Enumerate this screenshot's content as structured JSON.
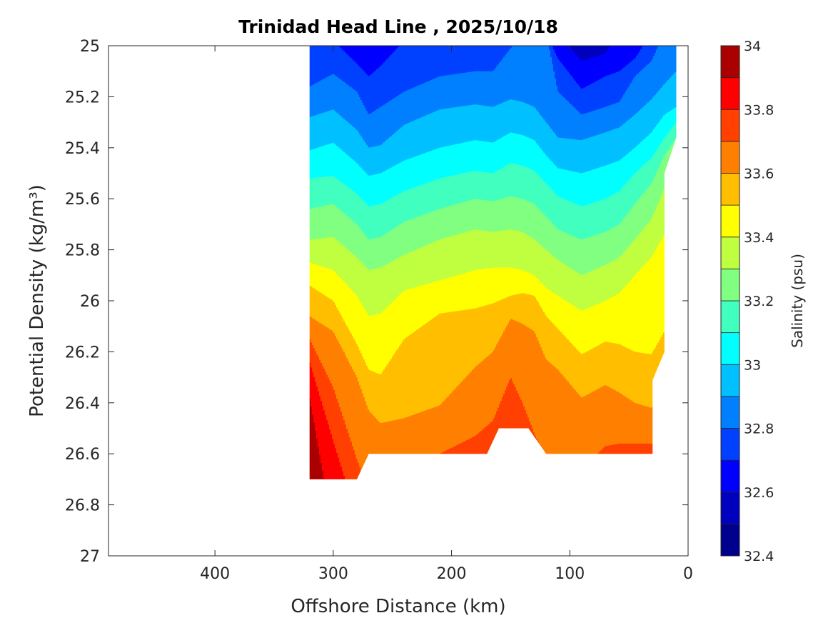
{
  "chart_data": {
    "type": "heatmap",
    "subtype": "filled-contour",
    "title": "Trinidad Head Line , 2025/10/18",
    "xlabel": "Offshore Distance (km)",
    "ylabel": "Potential Density (kg/m³)",
    "xlim": [
      0,
      490
    ],
    "x_reversed": true,
    "ylim": [
      25,
      27
    ],
    "y_reversed": true,
    "xticks": [
      "400",
      "300",
      "200",
      "100",
      "0"
    ],
    "xtick_values": [
      400,
      300,
      200,
      100,
      0
    ],
    "yticks": [
      "25",
      "25.2",
      "25.4",
      "25.6",
      "25.8",
      "26",
      "26.2",
      "26.4",
      "26.6",
      "26.8",
      "27"
    ],
    "ytick_values": [
      25,
      25.2,
      25.4,
      25.6,
      25.8,
      26,
      26.2,
      26.4,
      26.6,
      26.8,
      27
    ],
    "grid": false,
    "colorbar": {
      "label": "Salinity (psu)",
      "range": [
        32.4,
        34
      ],
      "ticks": [
        "32.4",
        "32.6",
        "32.8",
        "33",
        "33.2",
        "33.4",
        "33.6",
        "33.8",
        "34"
      ],
      "tick_values": [
        32.4,
        32.6,
        32.8,
        33.0,
        33.2,
        33.4,
        33.6,
        33.8,
        34.0
      ],
      "band_edges": [
        32.4,
        32.5,
        32.6,
        32.7,
        32.8,
        32.9,
        33.0,
        33.1,
        33.2,
        33.3,
        33.4,
        33.5,
        33.6,
        33.7,
        33.8,
        33.9,
        34.0
      ],
      "colormap": "jet",
      "colors": [
        "#00008F",
        "#0000BF",
        "#0000FF",
        "#0040FF",
        "#0080FF",
        "#00C0FF",
        "#00FFFF",
        "#40FFBF",
        "#80FF80",
        "#BFFF40",
        "#FFFF00",
        "#FFBF00",
        "#FF8000",
        "#FF4000",
        "#FF0000",
        "#AA0000"
      ]
    },
    "stations_km": [
      320,
      300,
      280,
      270,
      260,
      240,
      210,
      180,
      165,
      150,
      140,
      130,
      120,
      110,
      90,
      70,
      58,
      45,
      31,
      20,
      10
    ],
    "isohaline_density": [
      {
        "salinity": 32.6,
        "density": [
          24.9,
          24.9,
          24.9,
          24.9,
          24.9,
          24.9,
          24.9,
          24.9,
          24.9,
          24.9,
          24.9,
          24.9,
          24.9,
          24.95,
          25.06,
          25.03,
          24.95,
          24.9,
          24.9,
          24.9,
          24.9
        ]
      },
      {
        "salinity": 32.7,
        "density": [
          24.9,
          24.98,
          25.07,
          25.12,
          25.08,
          24.98,
          24.9,
          24.9,
          24.9,
          24.9,
          24.9,
          24.9,
          24.95,
          25.05,
          25.17,
          25.12,
          25.1,
          25.05,
          24.95,
          24.9,
          24.9
        ]
      },
      {
        "salinity": 32.8,
        "density": [
          25.16,
          25.11,
          25.18,
          25.27,
          25.24,
          25.18,
          25.12,
          25.1,
          25.1,
          25.01,
          24.95,
          24.92,
          24.95,
          25.18,
          25.27,
          25.24,
          25.22,
          25.12,
          25.06,
          24.95,
          24.9
        ]
      },
      {
        "salinity": 32.9,
        "density": [
          25.28,
          25.25,
          25.33,
          25.4,
          25.39,
          25.31,
          25.25,
          25.23,
          25.24,
          25.21,
          25.22,
          25.24,
          25.3,
          25.36,
          25.37,
          25.34,
          25.32,
          25.27,
          25.21,
          25.15,
          25.1
        ]
      },
      {
        "salinity": 33.0,
        "density": [
          25.41,
          25.38,
          25.46,
          25.51,
          25.5,
          25.45,
          25.4,
          25.37,
          25.38,
          25.34,
          25.35,
          25.37,
          25.43,
          25.48,
          25.5,
          25.47,
          25.45,
          25.4,
          25.34,
          25.27,
          25.24
        ]
      },
      {
        "salinity": 33.1,
        "density": [
          25.52,
          25.51,
          25.58,
          25.63,
          25.62,
          25.57,
          25.52,
          25.49,
          25.5,
          25.46,
          25.47,
          25.49,
          25.54,
          25.59,
          25.63,
          25.6,
          25.57,
          25.5,
          25.44,
          25.36,
          25.3
        ]
      },
      {
        "salinity": 33.2,
        "density": [
          25.64,
          25.62,
          25.7,
          25.76,
          25.75,
          25.69,
          25.64,
          25.6,
          25.61,
          25.59,
          25.6,
          25.62,
          25.67,
          25.72,
          25.76,
          25.73,
          25.7,
          25.62,
          25.54,
          25.43,
          25.36
        ]
      },
      {
        "salinity": 33.3,
        "density": [
          25.76,
          25.75,
          25.83,
          25.88,
          25.87,
          25.82,
          25.76,
          25.72,
          25.73,
          25.72,
          25.73,
          25.76,
          25.8,
          25.84,
          25.9,
          25.86,
          25.83,
          25.76,
          25.68,
          25.56,
          25.45
        ]
      },
      {
        "salinity": 33.4,
        "density": [
          25.85,
          25.88,
          25.98,
          26.06,
          26.05,
          25.96,
          25.92,
          25.88,
          25.87,
          25.87,
          25.88,
          25.9,
          25.95,
          25.98,
          26.04,
          26.0,
          25.97,
          25.9,
          25.83,
          25.74,
          25.6
        ]
      },
      {
        "salinity": 33.5,
        "density": [
          25.94,
          26.0,
          26.17,
          26.27,
          26.29,
          26.15,
          26.05,
          26.03,
          26.01,
          25.98,
          25.97,
          25.98,
          26.06,
          26.11,
          26.21,
          26.16,
          26.17,
          26.2,
          26.21,
          26.12,
          26.0
        ]
      },
      {
        "salinity": 33.6,
        "density": [
          26.06,
          26.12,
          26.3,
          26.43,
          26.48,
          26.46,
          26.41,
          26.26,
          26.2,
          26.07,
          26.09,
          26.12,
          26.23,
          26.27,
          26.38,
          26.33,
          26.36,
          26.4,
          26.42,
          26.35,
          26.3
        ]
      },
      {
        "salinity": 33.7,
        "density": [
          26.15,
          26.34,
          26.62,
          26.75,
          26.8,
          26.63,
          26.6,
          26.53,
          26.47,
          26.3,
          26.4,
          26.52,
          26.62,
          26.68,
          26.66,
          26.57,
          26.56,
          26.56,
          26.56,
          26.6,
          26.6
        ]
      },
      {
        "salinity": 33.8,
        "density": [
          26.24,
          26.55,
          26.85,
          26.9,
          26.9,
          26.9,
          26.9,
          26.9,
          26.9,
          26.9,
          26.9,
          26.9,
          26.9,
          26.9,
          26.9,
          26.9,
          26.9,
          26.9,
          26.9,
          26.9,
          26.9
        ]
      },
      {
        "salinity": 33.9,
        "density": [
          26.38,
          26.9,
          26.95,
          26.95,
          26.95,
          26.95,
          26.95,
          26.95,
          26.95,
          26.95,
          26.95,
          26.95,
          26.95,
          26.95,
          26.95,
          26.95,
          26.95,
          26.95,
          26.95,
          26.95,
          26.95
        ]
      }
    ],
    "data_extent": [
      [
        320,
        25
      ],
      [
        320,
        26.7
      ],
      [
        280,
        26.7
      ],
      [
        270,
        26.6
      ],
      [
        170,
        26.6
      ],
      [
        160,
        26.5
      ],
      [
        135,
        26.5
      ],
      [
        120,
        26.6
      ],
      [
        30,
        26.6
      ],
      [
        30,
        26.31
      ],
      [
        20,
        26.2
      ],
      [
        20,
        25.5
      ],
      [
        10,
        25.36
      ],
      [
        10,
        25
      ]
    ]
  }
}
